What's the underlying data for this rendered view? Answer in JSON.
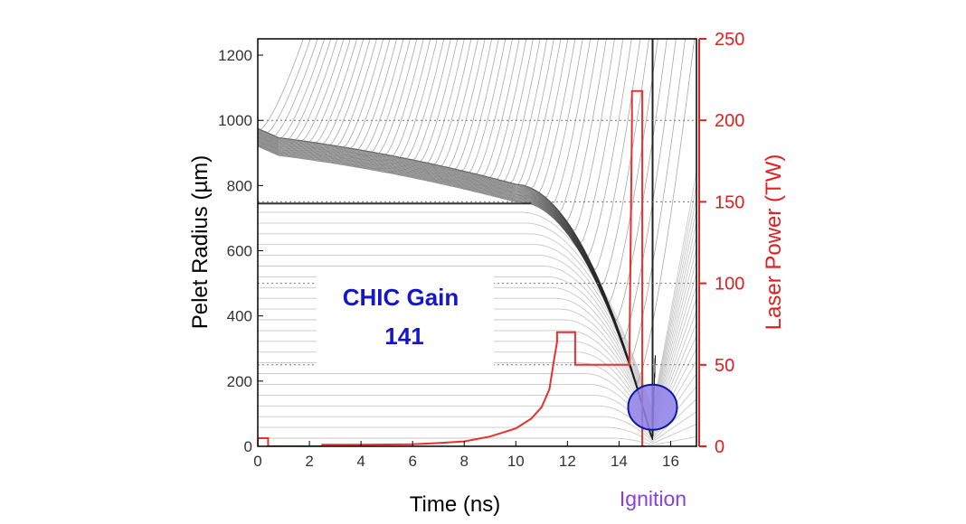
{
  "chart_data": {
    "type": "line",
    "title": "",
    "xlabel": "Time (ns)",
    "ylabel_left": "Pelet Radius (µm)",
    "ylabel_right": "Laser Power (TW)",
    "xlim": [
      0,
      17
    ],
    "ylim_left": [
      0,
      1250
    ],
    "ylim_right": [
      0,
      250
    ],
    "x_ticks": [
      0,
      2,
      4,
      6,
      8,
      10,
      12,
      14,
      16
    ],
    "y_left_ticks": [
      0,
      200,
      400,
      600,
      800,
      1000,
      1200
    ],
    "y_right_ticks": [
      0,
      50,
      100,
      150,
      200,
      250
    ],
    "grid": false,
    "hlines_dotted_left": [
      250,
      500,
      750,
      1000
    ],
    "series": [
      {
        "axis": "right",
        "color": "#e83030",
        "x": [
          0,
          0,
          0.4,
          0.4,
          2.5,
          2.5,
          4,
          6,
          7,
          8,
          9,
          10,
          10.6,
          11,
          11.3,
          11.5,
          11.6,
          11.6,
          12.3,
          12.3,
          14.4,
          14.4,
          14.5,
          14.5,
          14.9,
          14.9,
          15.0,
          15.0
        ],
        "y": [
          0,
          5,
          5,
          0,
          0,
          1,
          1,
          1.3,
          2,
          3,
          6,
          11,
          17,
          24,
          35,
          55,
          64,
          70,
          70,
          50,
          50,
          50,
          200,
          218,
          218,
          0,
          0,
          0
        ]
      }
    ],
    "annotations": [
      {
        "text_line1": "CHIC Gain",
        "text_line2": "141",
        "color": "#1515cc"
      },
      {
        "text": "Ignition",
        "color": "#8a3ee0",
        "marker": "ellipse",
        "x": 15.3,
        "y": 120,
        "fill": "#8f80e8",
        "stroke": "#0a1aa0"
      }
    ]
  }
}
